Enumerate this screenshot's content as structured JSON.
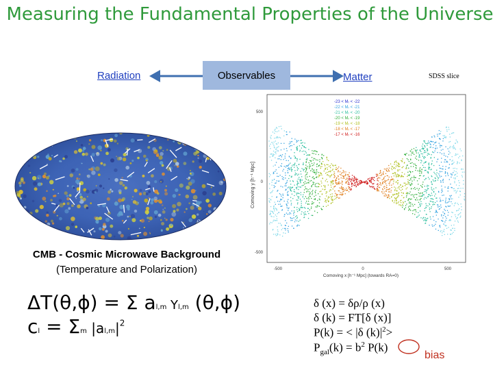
{
  "title": "Measuring the Fundamental Properties of the Universe",
  "nav": {
    "radiation": "Radiation",
    "observables": "Observables",
    "matter": "Matter"
  },
  "sdss_label": "SDSS slice",
  "cmb": {
    "caption_line1": "CMB - Cosmic Microwave Background",
    "caption_line2": "(Temperature and Polarization)",
    "eq1_main": "ΔT(θ,ϕ) = Σ a",
    "eq1_sub1": "l,m",
    "eq1_y": " Y",
    "eq1_sub2": "l,m",
    "eq1_tail": " (θ,ϕ)",
    "eq2_c": "c",
    "eq2_sub_l": "l",
    "eq2_eq": " = Σ",
    "eq2_sub_m": "m",
    "eq2_abs": " |a",
    "eq2_sub_lm": "l,m",
    "eq2_tail": "|",
    "eq2_sup": "2"
  },
  "matter_eqs": {
    "line1": "δ (x) = δρ/ρ (x)",
    "line2": "δ (k)  = FT[δ (x)]",
    "line3_a": "P(k) = < |δ (k)|",
    "line3_sup": "2",
    "line3_b": ">",
    "line4_a": "P",
    "line4_sub": "gal",
    "line4_b": "(k) = b",
    "line4_sup": "2",
    "line4_c": " P(k)"
  },
  "bias_label": "bias",
  "sdss_plot": {
    "y_axis_label": "Comoving y [h⁻¹ Mpc]",
    "x_axis_label": "Comoving x [h⁻¹ Mpc] (towards RA=0)",
    "y_ticks": [
      "500",
      "0",
      "-500"
    ],
    "x_ticks": [
      "-500",
      "0",
      "500"
    ],
    "legend": [
      {
        "text": "-23 < Mᵣ < -22",
        "color": "#2a2fd0"
      },
      {
        "text": "-22 < Mᵣ < -21",
        "color": "#36a3e0"
      },
      {
        "text": "-21 < Mᵣ < -20",
        "color": "#2fbfa0"
      },
      {
        "text": "-20 < Mᵣ < -19",
        "color": "#35b040"
      },
      {
        "text": "-19 < Mᵣ < -18",
        "color": "#b0c020"
      },
      {
        "text": "-18 < Mᵣ < -17",
        "color": "#e08020"
      },
      {
        "text": "-17 < Mᵣ < -16",
        "color": "#d02020"
      }
    ]
  },
  "colors": {
    "title": "#2f9a3b",
    "link": "#1f3fbf",
    "observables_box": "#9fb8de",
    "arrow": "#3f6fb0",
    "bias": "#c0301f"
  }
}
